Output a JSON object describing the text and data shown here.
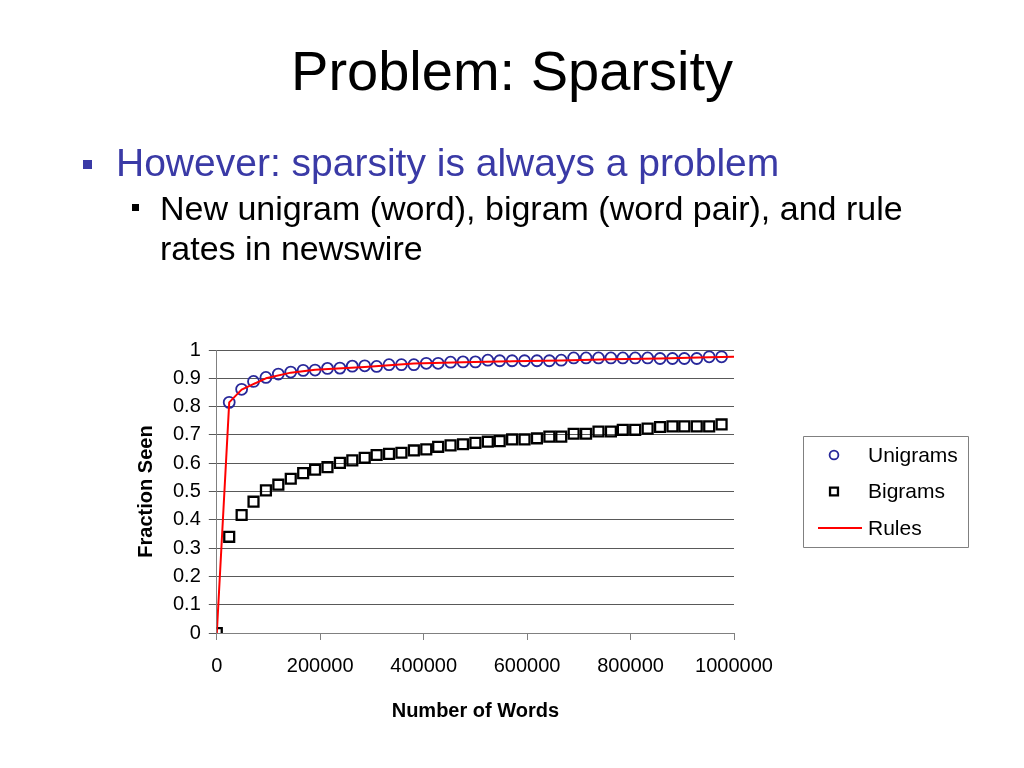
{
  "chart_data": {
    "type": "scatter",
    "title": "Problem: Sparsity",
    "subtitle": "However: sparsity is always a problem",
    "annotations": [
      "New unigram (word), bigram (word pair), and rule rates in newswire"
    ],
    "xlabel": "Number of Words",
    "ylabel": "Fraction Seen",
    "x": [
      0,
      24000,
      48000,
      71000,
      95000,
      119000,
      143000,
      167000,
      190000,
      214000,
      238000,
      262000,
      286000,
      309000,
      333000,
      357000,
      381000,
      405000,
      428000,
      452000,
      476000,
      500000,
      524000,
      547000,
      571000,
      595000,
      619000,
      643000,
      666000,
      690000,
      714000,
      738000,
      762000,
      785000,
      809000,
      833000,
      857000,
      881000,
      904000,
      928000,
      952000,
      976000
    ],
    "series": [
      {
        "name": "Unigrams",
        "color": "#28289a",
        "marker": "circle",
        "values": [
          null,
          0.815,
          0.861,
          0.889,
          0.903,
          0.915,
          0.922,
          0.928,
          0.929,
          0.935,
          0.936,
          0.943,
          0.944,
          0.942,
          0.948,
          0.948,
          0.948,
          0.953,
          0.953,
          0.957,
          0.958,
          0.958,
          0.964,
          0.962,
          0.962,
          0.962,
          0.962,
          0.962,
          0.964,
          0.972,
          0.972,
          0.972,
          0.972,
          0.972,
          0.972,
          0.972,
          0.97,
          0.97,
          0.97,
          0.97,
          0.976,
          0.976
        ]
      },
      {
        "name": "Bigrams",
        "color": "#000000",
        "marker": "square",
        "values": [
          0,
          0.34,
          0.417,
          0.464,
          0.504,
          0.524,
          0.545,
          0.565,
          0.577,
          0.586,
          0.601,
          0.61,
          0.619,
          0.629,
          0.633,
          0.637,
          0.645,
          0.649,
          0.658,
          0.663,
          0.667,
          0.672,
          0.676,
          0.678,
          0.684,
          0.684,
          0.688,
          0.694,
          0.694,
          0.704,
          0.704,
          0.712,
          0.712,
          0.718,
          0.718,
          0.722,
          0.728,
          0.73,
          0.73,
          0.73,
          0.73,
          0.737
        ]
      },
      {
        "name": "Rules",
        "type": "line",
        "color": "#ff0000",
        "marker": "none",
        "line_style": "solid",
        "x": [
          0,
          24000,
          48000,
          95000,
          143000,
          190000,
          286000,
          381000,
          476000,
          571000,
          666000,
          762000,
          857000,
          952000,
          1000000
        ],
        "values": [
          0,
          0.815,
          0.86,
          0.9,
          0.92,
          0.93,
          0.94,
          0.952,
          0.957,
          0.96,
          0.963,
          0.967,
          0.97,
          0.974,
          0.976
        ]
      }
    ],
    "xlim": [
      0,
      1000000
    ],
    "xticks": [
      0,
      200000,
      400000,
      600000,
      800000,
      1000000
    ],
    "ylim": [
      0,
      1
    ],
    "yticks": [
      0,
      0.1,
      0.2,
      0.3,
      0.4,
      0.5,
      0.6,
      0.7,
      0.8,
      0.9,
      1
    ],
    "grid": "y",
    "legend": "right"
  }
}
